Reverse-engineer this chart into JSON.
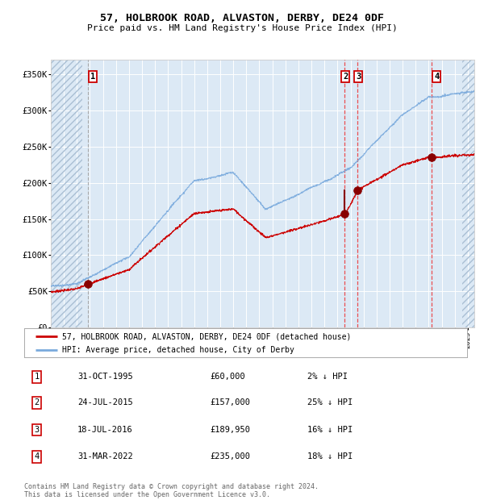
{
  "title": "57, HOLBROOK ROAD, ALVASTON, DERBY, DE24 0DF",
  "subtitle": "Price paid vs. HM Land Registry's House Price Index (HPI)",
  "ylim": [
    0,
    370000
  ],
  "yticks": [
    0,
    50000,
    100000,
    150000,
    200000,
    250000,
    300000,
    350000
  ],
  "ytick_labels": [
    "£0",
    "£50K",
    "£100K",
    "£150K",
    "£200K",
    "£250K",
    "£300K",
    "£350K"
  ],
  "background_color": "#ffffff",
  "plot_bg_color": "#dce9f5",
  "hatch_color": "#aabfd4",
  "grid_color": "#ffffff",
  "xmin": 1993.0,
  "xmax": 2025.5,
  "hatch_left_end": 1995.4,
  "hatch_right_start": 2024.6,
  "purchases": [
    {
      "num": 1,
      "date_x": 1995.83,
      "price": 60000,
      "label": "31-OCT-1995",
      "pct": "2%"
    },
    {
      "num": 2,
      "date_x": 2015.56,
      "price": 157000,
      "label": "24-JUL-2015",
      "pct": "25%"
    },
    {
      "num": 3,
      "date_x": 2016.54,
      "price": 189950,
      "label": "18-JUL-2016",
      "pct": "16%"
    },
    {
      "num": 4,
      "date_x": 2022.25,
      "price": 235000,
      "label": "31-MAR-2022",
      "pct": "18%"
    }
  ],
  "legend_line1": "57, HOLBROOK ROAD, ALVASTON, DERBY, DE24 0DF (detached house)",
  "legend_line2": "HPI: Average price, detached house, City of Derby",
  "footer": "Contains HM Land Registry data © Crown copyright and database right 2024.\nThis data is licensed under the Open Government Licence v3.0.",
  "red_line_color": "#cc0000",
  "blue_line_color": "#7aaadd",
  "dot_color": "#880000",
  "vline_color": "#ee3333",
  "table_rows": [
    [
      "1",
      "31-OCT-1995",
      "£60,000",
      "2% ↓ HPI"
    ],
    [
      "2",
      "24-JUL-2015",
      "£157,000",
      "25% ↓ HPI"
    ],
    [
      "3",
      "18-JUL-2016",
      "£189,950",
      "16% ↓ HPI"
    ],
    [
      "4",
      "31-MAR-2022",
      "£235,000",
      "18% ↓ HPI"
    ]
  ]
}
